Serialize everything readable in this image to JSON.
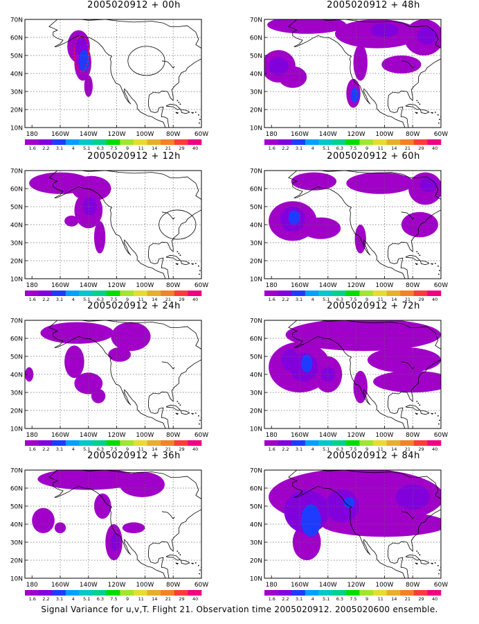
{
  "figure": {
    "caption": "Signal Variance for u,v,T. Flight 21. Observation time 2005020912. 2005020600 ensemble."
  },
  "axes": {
    "lat_labels": [
      "70N",
      "60N",
      "50N",
      "40N",
      "30N",
      "20N",
      "10N"
    ],
    "lon_labels": [
      "180",
      "160W",
      "140W",
      "120W",
      "100W",
      "80W",
      "60W"
    ]
  },
  "colorbar": {
    "labels": [
      "1.6",
      "2.2",
      "3.1",
      "4",
      "5.1",
      "6.3",
      "7.5",
      "9",
      "11",
      "14",
      "21",
      "29",
      "40"
    ],
    "colors": [
      "#a000c8",
      "#8200dc",
      "#1e3cff",
      "#00a0ff",
      "#00c8c8",
      "#00d28c",
      "#00dc00",
      "#a0e632",
      "#e6dc32",
      "#e6af2d",
      "#f08228",
      "#fa3c3c",
      "#f00082"
    ]
  },
  "shading": {
    "levels": [
      "#a000c8",
      "#8200dc",
      "#1e3cff",
      "#00a0ff",
      "#00c8c8"
    ]
  },
  "chart_data": [
    {
      "title": "2005020912 + 00h",
      "blobs": [
        {
          "lon": -147,
          "lat": 55,
          "rx": 8,
          "ry": 9,
          "level": 0
        },
        {
          "lon": -144,
          "lat": 46,
          "rx": 6,
          "ry": 10,
          "level": 0
        },
        {
          "lon": -140,
          "lat": 33,
          "rx": 3,
          "ry": 6,
          "level": 0
        },
        {
          "lon": -145,
          "lat": 55,
          "rx": 5,
          "ry": 5,
          "level": 1
        },
        {
          "lon": -143,
          "lat": 47,
          "rx": 4,
          "ry": 6,
          "level": 2
        }
      ],
      "circles": [
        {
          "lon": -99,
          "lat": 47,
          "r": 9
        }
      ],
      "dashed": [
        {
          "lon": -145,
          "lat": 51,
          "rx": 5,
          "ry": 10
        }
      ]
    },
    {
      "title": "2005020912 + 48h",
      "blobs": [
        {
          "lon": -155,
          "lat": 67,
          "rx": 28,
          "ry": 5,
          "level": 0
        },
        {
          "lon": -105,
          "lat": 62,
          "rx": 30,
          "ry": 8,
          "level": 0
        },
        {
          "lon": -72,
          "lat": 60,
          "rx": 14,
          "ry": 10,
          "level": 0
        },
        {
          "lon": -175,
          "lat": 44,
          "rx": 12,
          "ry": 9,
          "level": 0
        },
        {
          "lon": -165,
          "lat": 38,
          "rx": 10,
          "ry": 6,
          "level": 0
        },
        {
          "lon": -117,
          "lat": 46,
          "rx": 5,
          "ry": 10,
          "level": 0
        },
        {
          "lon": -122,
          "lat": 29,
          "rx": 5,
          "ry": 8,
          "level": 0
        },
        {
          "lon": -88,
          "lat": 45,
          "rx": 14,
          "ry": 5,
          "level": 0
        },
        {
          "lon": -175,
          "lat": 44,
          "rx": 7,
          "ry": 5,
          "level": 1
        },
        {
          "lon": -100,
          "lat": 64,
          "rx": 10,
          "ry": 4,
          "level": 1
        },
        {
          "lon": -70,
          "lat": 61,
          "rx": 7,
          "ry": 5,
          "level": 1
        },
        {
          "lon": -121,
          "lat": 28,
          "rx": 3,
          "ry": 4,
          "level": 2
        }
      ]
    },
    {
      "title": "2005020912 + 12h",
      "blobs": [
        {
          "lon": -160,
          "lat": 63,
          "rx": 22,
          "ry": 6,
          "level": 0
        },
        {
          "lon": -138,
          "lat": 60,
          "rx": 14,
          "ry": 7,
          "level": 0
        },
        {
          "lon": -140,
          "lat": 48,
          "rx": 10,
          "ry": 10,
          "level": 0
        },
        {
          "lon": -132,
          "lat": 33,
          "rx": 4,
          "ry": 9,
          "level": 0
        },
        {
          "lon": -152,
          "lat": 42,
          "rx": 5,
          "ry": 3,
          "level": 0
        },
        {
          "lon": -139,
          "lat": 50,
          "rx": 5,
          "ry": 5,
          "level": 1
        }
      ],
      "circles": [
        {
          "lon": -77,
          "lat": 40,
          "r": 9
        }
      ]
    },
    {
      "title": "2005020912 + 60h",
      "blobs": [
        {
          "lon": -150,
          "lat": 64,
          "rx": 16,
          "ry": 5,
          "level": 0
        },
        {
          "lon": -103,
          "lat": 63,
          "rx": 24,
          "ry": 6,
          "level": 0
        },
        {
          "lon": -71,
          "lat": 60,
          "rx": 12,
          "ry": 9,
          "level": 0
        },
        {
          "lon": -165,
          "lat": 42,
          "rx": 17,
          "ry": 11,
          "level": 0
        },
        {
          "lon": -145,
          "lat": 38,
          "rx": 14,
          "ry": 6,
          "level": 0
        },
        {
          "lon": -75,
          "lat": 40,
          "rx": 13,
          "ry": 7,
          "level": 0
        },
        {
          "lon": -117,
          "lat": 32,
          "rx": 4,
          "ry": 8,
          "level": 0
        },
        {
          "lon": -165,
          "lat": 43,
          "rx": 9,
          "ry": 7,
          "level": 1
        },
        {
          "lon": -164,
          "lat": 44,
          "rx": 4,
          "ry": 4,
          "level": 2
        },
        {
          "lon": -69,
          "lat": 62,
          "rx": 6,
          "ry": 4,
          "level": 1
        }
      ]
    },
    {
      "title": "2005020912 + 24h",
      "blobs": [
        {
          "lon": -148,
          "lat": 63,
          "rx": 26,
          "ry": 6,
          "level": 0
        },
        {
          "lon": -110,
          "lat": 61,
          "rx": 14,
          "ry": 8,
          "level": 0
        },
        {
          "lon": -150,
          "lat": 47,
          "rx": 7,
          "ry": 9,
          "level": 0
        },
        {
          "lon": -140,
          "lat": 35,
          "rx": 10,
          "ry": 6,
          "level": 0
        },
        {
          "lon": -133,
          "lat": 28,
          "rx": 5,
          "ry": 4,
          "level": 0
        },
        {
          "lon": -118,
          "lat": 51,
          "rx": 8,
          "ry": 4,
          "level": 0
        },
        {
          "lon": -182,
          "lat": 40,
          "rx": 3,
          "ry": 4,
          "level": 0
        }
      ]
    },
    {
      "title": "2005020912 + 72h",
      "blobs": [
        {
          "lon": -115,
          "lat": 62,
          "rx": 55,
          "ry": 9,
          "level": 0
        },
        {
          "lon": -160,
          "lat": 44,
          "rx": 22,
          "ry": 14,
          "level": 0
        },
        {
          "lon": -140,
          "lat": 40,
          "rx": 10,
          "ry": 10,
          "level": 0
        },
        {
          "lon": -86,
          "lat": 48,
          "rx": 26,
          "ry": 7,
          "level": 0
        },
        {
          "lon": -80,
          "lat": 36,
          "rx": 28,
          "ry": 6,
          "level": 0
        },
        {
          "lon": -117,
          "lat": 33,
          "rx": 5,
          "ry": 9,
          "level": 0
        },
        {
          "lon": -167,
          "lat": 48,
          "rx": 6,
          "ry": 6,
          "level": 1
        },
        {
          "lon": -157,
          "lat": 44,
          "rx": 10,
          "ry": 8,
          "level": 1
        },
        {
          "lon": -155,
          "lat": 46,
          "rx": 4,
          "ry": 5,
          "level": 2
        },
        {
          "lon": -140,
          "lat": 40,
          "rx": 5,
          "ry": 4,
          "level": 1
        }
      ]
    },
    {
      "title": "2005020912 + 36h",
      "blobs": [
        {
          "lon": -140,
          "lat": 65,
          "rx": 36,
          "ry": 6,
          "level": 0
        },
        {
          "lon": -102,
          "lat": 62,
          "rx": 16,
          "ry": 7,
          "level": 0
        },
        {
          "lon": -172,
          "lat": 42,
          "rx": 8,
          "ry": 7,
          "level": 0
        },
        {
          "lon": -160,
          "lat": 38,
          "rx": 4,
          "ry": 3,
          "level": 0
        },
        {
          "lon": -130,
          "lat": 50,
          "rx": 6,
          "ry": 7,
          "level": 0
        },
        {
          "lon": -122,
          "lat": 30,
          "rx": 6,
          "ry": 10,
          "level": 0
        },
        {
          "lon": -108,
          "lat": 38,
          "rx": 8,
          "ry": 3,
          "level": 0
        },
        {
          "lon": -121,
          "lat": 30,
          "rx": 3,
          "ry": 5,
          "level": 1
        }
      ]
    },
    {
      "title": "2005020912 + 84h",
      "blobs": [
        {
          "lon": -120,
          "lat": 55,
          "rx": 62,
          "ry": 16,
          "level": 0
        },
        {
          "lon": -100,
          "lat": 40,
          "rx": 45,
          "ry": 7,
          "level": 0
        },
        {
          "lon": -155,
          "lat": 30,
          "rx": 10,
          "ry": 10,
          "level": 0
        },
        {
          "lon": -155,
          "lat": 47,
          "rx": 16,
          "ry": 12,
          "level": 1
        },
        {
          "lon": -130,
          "lat": 50,
          "rx": 12,
          "ry": 9,
          "level": 1
        },
        {
          "lon": -80,
          "lat": 55,
          "rx": 12,
          "ry": 7,
          "level": 1
        },
        {
          "lon": -152,
          "lat": 42,
          "rx": 7,
          "ry": 9,
          "level": 2
        },
        {
          "lon": -125,
          "lat": 52,
          "rx": 4,
          "ry": 3,
          "level": 2
        }
      ]
    }
  ]
}
